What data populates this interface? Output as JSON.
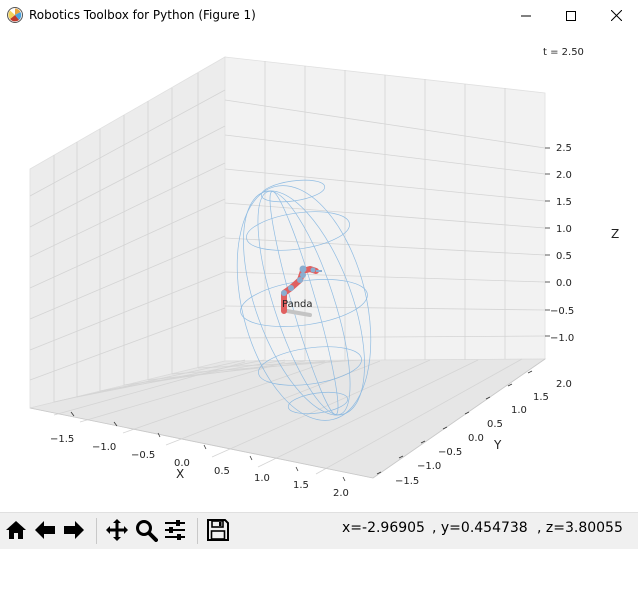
{
  "window": {
    "title": "Robotics Toolbox for Python (Figure 1)",
    "icon": "matplotlib-logo-icon"
  },
  "plot": {
    "time_label": "t = 2.50",
    "robot_label": "Panda",
    "x_axis": {
      "label": "X",
      "ticks": [
        "−1.5",
        "−1.0",
        "−0.5",
        "0.0",
        "0.5",
        "1.0",
        "1.5",
        "2.0"
      ]
    },
    "y_axis": {
      "label": "Y",
      "ticks": [
        "−1.5",
        "−1.0",
        "−0.5",
        "0.0",
        "0.5",
        "1.0",
        "1.5",
        "2.0"
      ]
    },
    "z_axis": {
      "label": "Z",
      "ticks": [
        "2.5",
        "2.0",
        "1.5",
        "1.0",
        "0.5",
        "0.0",
        "−0.5",
        "−1.0"
      ]
    },
    "robot_color": "#e06060",
    "joint_color": "#8aaed0",
    "ellipsoid_color": "#7fb3e0"
  },
  "toolbar": {
    "buttons": [
      "home-icon",
      "back-icon",
      "forward-icon",
      "pan-icon",
      "zoom-icon",
      "configure-icon",
      "save-icon"
    ],
    "coords": {
      "x": "x=-2.96905",
      "y": ", y=0.454738",
      "z": ", z=3.80055"
    }
  }
}
